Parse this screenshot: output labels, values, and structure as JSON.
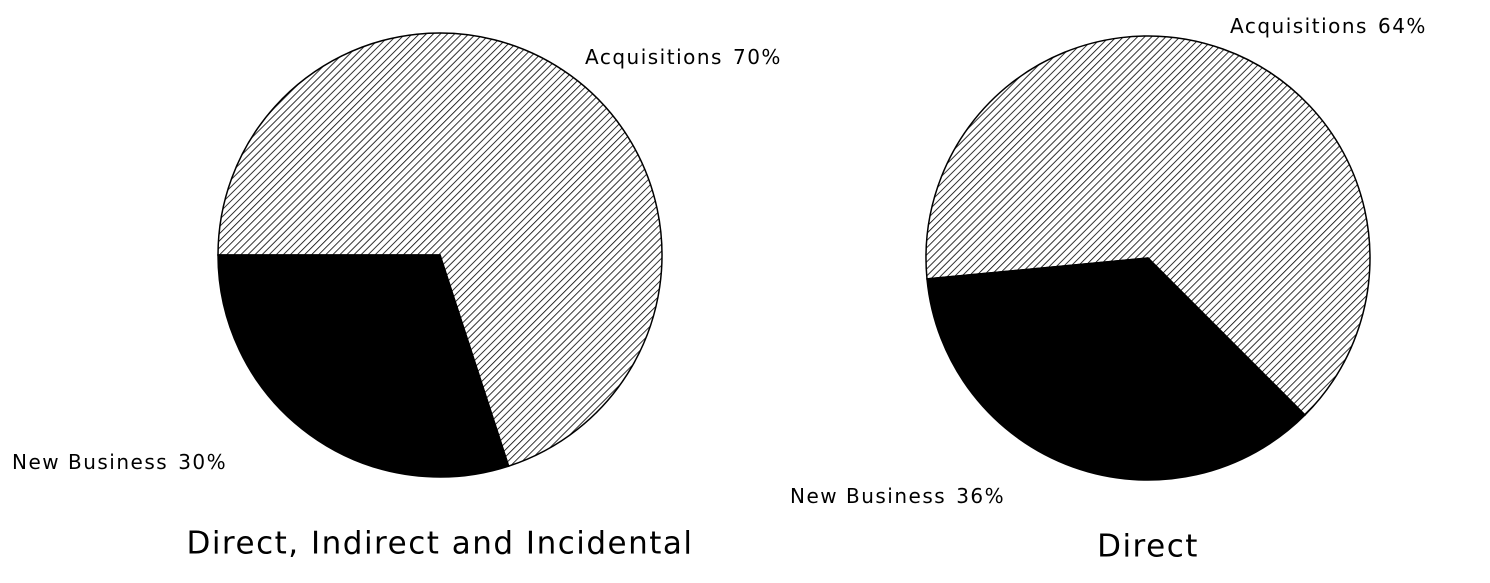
{
  "chart_data": [
    {
      "type": "pie",
      "title": "Direct, Indirect and Incidental",
      "categories": [
        "Acquisitions",
        "New Business"
      ],
      "values": [
        70,
        30
      ],
      "value_labels": [
        "70%",
        "30%"
      ],
      "colors": [
        "#000000",
        "#000000"
      ],
      "hatch": [
        true,
        false
      ]
    },
    {
      "type": "pie",
      "title": "Direct",
      "categories": [
        "Acquisitions",
        "New Business"
      ],
      "values": [
        64,
        36
      ],
      "value_labels": [
        "64%",
        "36%"
      ],
      "colors": [
        "#000000",
        "#000000"
      ],
      "hatch": [
        true,
        false
      ]
    }
  ]
}
